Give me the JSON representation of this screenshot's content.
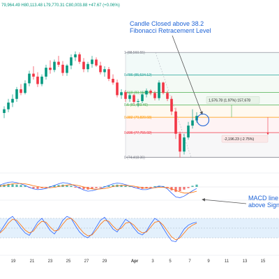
{
  "ohlc": "79,964.49  H80,113.48  L79,770.31  C80,003.88  +47.67 (+0.06%)",
  "fib_levels": [
    {
      "ratio": "1",
      "label": "1 (88,560.55)",
      "price": 88560.55,
      "color": "#787b86"
    },
    {
      "ratio": "0.786",
      "label": "0.786 (85,534.12)",
      "price": 85534.12,
      "color": "#26a69a"
    },
    {
      "ratio": "0.618",
      "label": "0.618 (83,158.23)",
      "price": 83158.23,
      "color": "#4caf50"
    },
    {
      "ratio": "0.5",
      "label": "0.5 (81,489.46)",
      "price": 81489.46,
      "color": "#4caf50"
    },
    {
      "ratio": "0.382",
      "label": "0.382 (79,820.68)",
      "price": 79820.68,
      "color": "#ff9800"
    },
    {
      "ratio": "0.236",
      "label": "0.236 (77,755.92)",
      "price": 77755.92,
      "color": "#f23645"
    },
    {
      "ratio": "0",
      "label": "0 (74,418.36)",
      "price": 74418.36,
      "color": "#787b86"
    }
  ],
  "annotations": {
    "candle_note_line1": "Candle Closed above 38.2",
    "candle_note_line2": "Fibonacci Retracement Level",
    "macd_note_line1": "MACD line",
    "macd_note_line2": "above Sign"
  },
  "measurements": {
    "up": "1,576.78 (1.97%) 157,678",
    "down": "-2,196.23 (-2.75%)"
  },
  "colors": {
    "up": "#089981",
    "down": "#f23645",
    "annotation": "#1e63d6",
    "macd_line": "#2962ff",
    "signal_line": "#ff6d00",
    "rsi_band": "#e3f0fc"
  },
  "chart_data": [
    {
      "type": "candlestick",
      "title": "",
      "x_ticks": [
        "19",
        "21",
        "23",
        "25",
        "27",
        "29",
        "Apr",
        "3",
        "5",
        "7",
        "9",
        "11",
        "13",
        "15"
      ],
      "ylim": [
        72500,
        94500
      ],
      "candles": [
        [
          80400,
          81300,
          79700,
          80900
        ],
        [
          80900,
          82300,
          80500,
          81800
        ],
        [
          81800,
          82900,
          81200,
          82300
        ],
        [
          82300,
          83900,
          81900,
          83600
        ],
        [
          83600,
          84300,
          82800,
          83100
        ],
        [
          83100,
          84800,
          82900,
          84400
        ],
        [
          84400,
          86100,
          84000,
          85700
        ],
        [
          85700,
          86700,
          84900,
          85300
        ],
        [
          85300,
          85900,
          83900,
          84300
        ],
        [
          84300,
          85600,
          84000,
          85300
        ],
        [
          85300,
          86900,
          84900,
          86500
        ],
        [
          86500,
          87500,
          85700,
          86200
        ],
        [
          86200,
          87600,
          85900,
          87300
        ],
        [
          87300,
          88100,
          86600,
          86900
        ],
        [
          86900,
          87400,
          85400,
          85800
        ],
        [
          85800,
          87000,
          85400,
          86800
        ],
        [
          86800,
          88300,
          86300,
          87900
        ],
        [
          87900,
          88700,
          87400,
          88300
        ],
        [
          88300,
          88560,
          87000,
          87300
        ],
        [
          87300,
          87800,
          85900,
          86300
        ],
        [
          86300,
          87300,
          85900,
          87000
        ],
        [
          87000,
          88100,
          86500,
          87600
        ],
        [
          87600,
          87900,
          86600,
          86800
        ],
        [
          86800,
          87300,
          85600,
          85900
        ],
        [
          85900,
          86700,
          85300,
          86300
        ],
        [
          86300,
          86600,
          84700,
          85000
        ],
        [
          85000,
          85600,
          84200,
          84500
        ],
        [
          84500,
          84900,
          82500,
          82800
        ],
        [
          82800,
          83600,
          82300,
          83200
        ],
        [
          83200,
          83500,
          81900,
          82300
        ],
        [
          82300,
          83100,
          81900,
          82800
        ],
        [
          82800,
          83000,
          81600,
          81900
        ],
        [
          81900,
          82300,
          81200,
          82000
        ],
        [
          82000,
          83300,
          81700,
          82900
        ],
        [
          82900,
          83700,
          82500,
          83400
        ],
        [
          83400,
          83600,
          82800,
          83100
        ],
        [
          83100,
          83400,
          82100,
          82400
        ],
        [
          82400,
          84800,
          82100,
          84500
        ],
        [
          84500,
          84600,
          82900,
          83100
        ],
        [
          83100,
          83400,
          82000,
          82300
        ],
        [
          82300,
          82700,
          80100,
          80600
        ],
        [
          80600,
          81100,
          76900,
          77600
        ],
        [
          77600,
          77900,
          74418,
          75200
        ],
        [
          75200,
          77600,
          74800,
          77100
        ],
        [
          77100,
          79200,
          76800,
          78700
        ],
        [
          78700,
          80900,
          78300,
          79400
        ],
        [
          79400,
          80500,
          79100,
          80000
        ]
      ]
    },
    {
      "type": "bar",
      "title": "",
      "series": [
        {
          "values": [
            0.3,
            0.5,
            0.6,
            0.8,
            0.7,
            0.6,
            0.5,
            0.3,
            -0.2,
            -0.4,
            -0.5,
            -0.3,
            -0.2,
            0.2,
            0.4,
            0.5,
            0.6,
            0.4,
            0.3,
            -0.2,
            -0.4,
            -0.6,
            -0.7,
            -0.5,
            -0.3,
            -0.2,
            0.2,
            0.3,
            0.5,
            0.6,
            0.5,
            0.3,
            0.2,
            -0.2,
            -0.3,
            -0.5,
            -0.4,
            -0.2,
            0.2,
            0.3,
            0.2,
            -0.3,
            -0.9,
            -1.3,
            -1.1,
            -0.7,
            -0.3,
            0.3,
            0.6
          ]
        },
        {
          "values": [
            0.2,
            0.5,
            0.9,
            1.2,
            1.3,
            1.1,
            0.8,
            0.4,
            -0.1,
            -0.5,
            -0.7,
            -0.6,
            -0.4,
            0.0,
            0.4,
            0.8,
            1.1,
            1.0,
            0.7,
            0.2,
            -0.3,
            -0.8,
            -1.1,
            -1.0,
            -0.7,
            -0.4,
            0.0,
            0.4,
            0.8,
            1.0,
            0.9,
            0.6,
            0.3,
            -0.1,
            -0.4,
            -0.7,
            -0.7,
            -0.4,
            -0.1,
            0.2,
            0.1,
            -0.5,
            -1.6,
            -2.6,
            -2.8,
            -2.4,
            -1.7,
            -1.0,
            -0.4
          ]
        },
        {
          "values": [
            0.1,
            0.2,
            0.4,
            0.6,
            0.8,
            0.9,
            0.9,
            0.8,
            0.6,
            0.3,
            0.1,
            -0.1,
            -0.2,
            -0.2,
            -0.1,
            0.1,
            0.3,
            0.5,
            0.6,
            0.5,
            0.3,
            0.0,
            -0.3,
            -0.5,
            -0.6,
            -0.5,
            -0.4,
            -0.2,
            0.1,
            0.3,
            0.4,
            0.4,
            0.3,
            0.2,
            0.0,
            -0.2,
            -0.3,
            -0.3,
            -0.2,
            -0.1,
            -0.1,
            -0.2,
            -0.5,
            -0.9,
            -1.3,
            -1.6,
            -1.6,
            -1.4,
            -1.1
          ]
        }
      ]
    },
    {
      "type": "line",
      "title": "",
      "ylim": [
        0,
        100
      ],
      "band": [
        30,
        70
      ],
      "series": [
        {
          "values": [
            38,
            42,
            55,
            68,
            74,
            62,
            50,
            40,
            35,
            48,
            62,
            70,
            58,
            45,
            38,
            50,
            66,
            74,
            70,
            55,
            42,
            34,
            30,
            38,
            52,
            66,
            72,
            60,
            48,
            42,
            55,
            68,
            62,
            50,
            40,
            36,
            44,
            58,
            70,
            64,
            50,
            36,
            24,
            22,
            34,
            48,
            56,
            60,
            62
          ]
        },
        {
          "values": [
            35,
            40,
            48,
            60,
            68,
            66,
            56,
            46,
            40,
            44,
            56,
            64,
            62,
            52,
            44,
            46,
            58,
            68,
            70,
            62,
            50,
            40,
            34,
            36,
            46,
            58,
            66,
            64,
            54,
            46,
            50,
            60,
            62,
            56,
            46,
            40,
            42,
            52,
            62,
            64,
            56,
            44,
            32,
            26,
            30,
            40,
            50,
            56,
            60
          ]
        }
      ]
    }
  ]
}
